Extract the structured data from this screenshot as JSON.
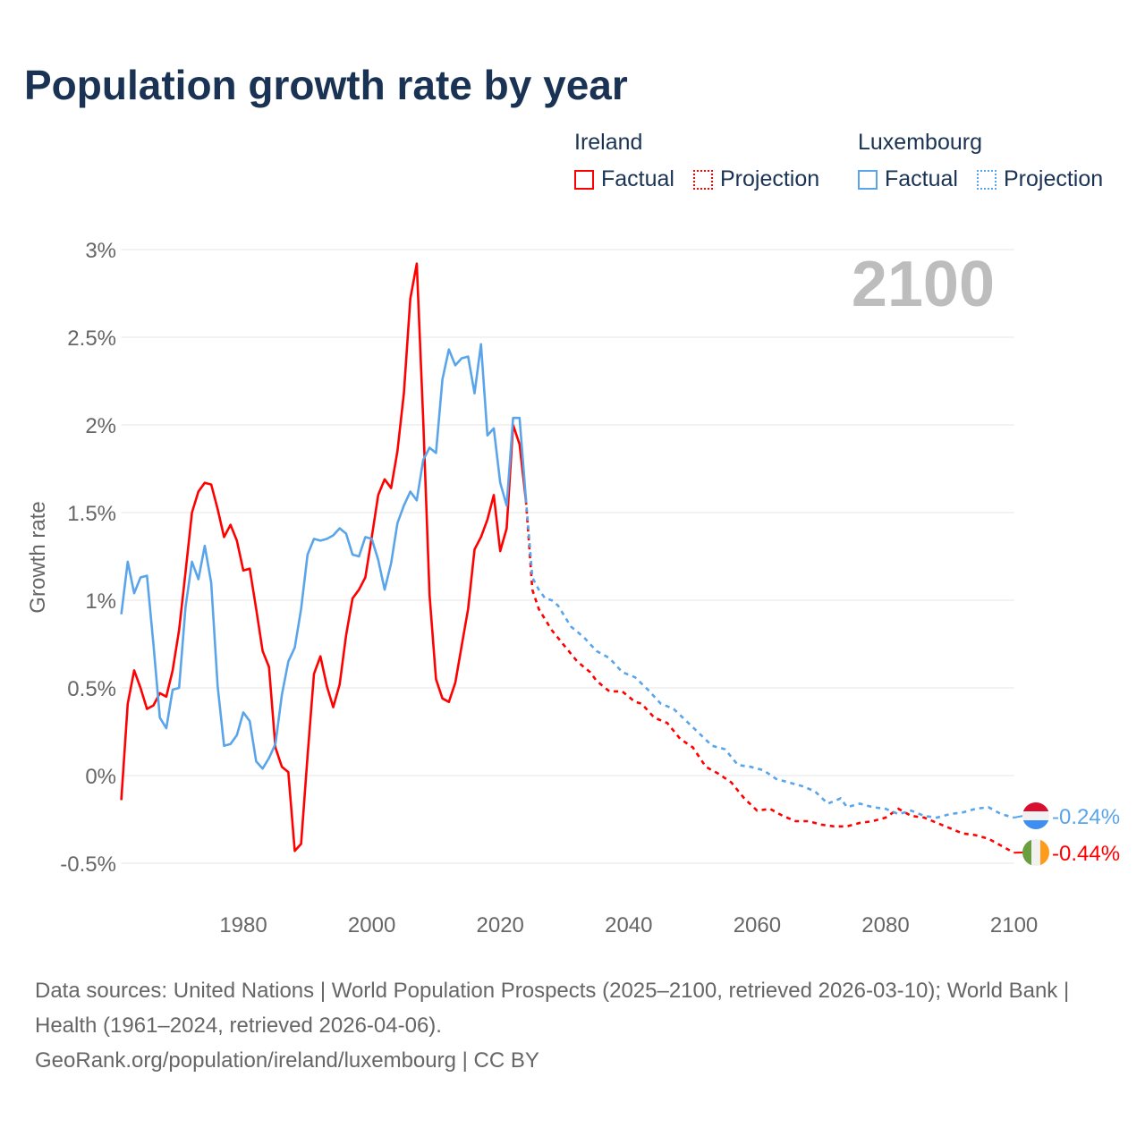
{
  "title": "Population growth rate by year",
  "legend": {
    "groups": [
      {
        "name": "Ireland",
        "factual": "Factual",
        "projection": "Projection",
        "color": "#ff0000"
      },
      {
        "name": "Luxembourg",
        "factual": "Factual",
        "projection": "Projection",
        "color": "#5aa5ea"
      }
    ]
  },
  "footer": {
    "sources": "Data sources: United Nations | World Population Prospects (2025–2100, retrieved 2026-03-10); World Bank | Health (1961–2024, retrieved 2026-04-06).",
    "credit": "GeoRank.org/population/ireland/luxembourg | CC BY"
  },
  "chart_data": {
    "type": "line",
    "title": "Population growth rate by year",
    "ylabel": "Growth rate",
    "xlabel": "",
    "year_label": "2100",
    "xlim": [
      1961,
      2100
    ],
    "ylim": [
      -0.5,
      3
    ],
    "x_ticks": [
      1980,
      2000,
      2020,
      2040,
      2060,
      2080,
      2100
    ],
    "y_ticks": [
      {
        "v": -0.5,
        "label": "-0.5%"
      },
      {
        "v": 0,
        "label": "0%"
      },
      {
        "v": 0.5,
        "label": "0.5%"
      },
      {
        "v": 1,
        "label": "1%"
      },
      {
        "v": 1.5,
        "label": "1.5%"
      },
      {
        "v": 2,
        "label": "2%"
      },
      {
        "v": 2.5,
        "label": "2.5%"
      },
      {
        "v": 3,
        "label": "3%"
      }
    ],
    "grid": true,
    "legend_position": "top-right",
    "series": [
      {
        "name": "Ireland",
        "color": "#ff0000",
        "end_label": "-0.44%",
        "factual": {
          "start_year": 1961,
          "values": [
            -0.14,
            0.41,
            0.6,
            0.5,
            0.38,
            0.4,
            0.47,
            0.45,
            0.6,
            0.83,
            1.16,
            1.5,
            1.62,
            1.67,
            1.66,
            1.52,
            1.36,
            1.43,
            1.34,
            1.17,
            1.18,
            0.95,
            0.71,
            0.62,
            0.16,
            0.05,
            0.02,
            -0.43,
            -0.39,
            0.11,
            0.58,
            0.68,
            0.51,
            0.39,
            0.52,
            0.8,
            1.01,
            1.06,
            1.13,
            1.36,
            1.6,
            1.69,
            1.64,
            1.85,
            2.18,
            2.72,
            2.92,
            2.03,
            1.03,
            0.55,
            0.44,
            0.42,
            0.53,
            0.74,
            0.95,
            1.29,
            1.36,
            1.46,
            1.6,
            1.28,
            1.41,
            2.0,
            1.89,
            1.57
          ]
        },
        "projection": {
          "years": [
            2024,
            2025,
            2026,
            2027,
            2028,
            2030,
            2032,
            2034,
            2035,
            2037,
            2039,
            2041,
            2042,
            2044,
            2046,
            2048,
            2050,
            2052,
            2054,
            2056,
            2058,
            2060,
            2062,
            2064,
            2066,
            2068,
            2070,
            2072,
            2074,
            2076,
            2078,
            2080,
            2082,
            2084,
            2086,
            2088,
            2090,
            2092,
            2094,
            2096,
            2098,
            2100
          ],
          "values": [
            1.57,
            1.06,
            0.95,
            0.89,
            0.83,
            0.74,
            0.65,
            0.59,
            0.54,
            0.48,
            0.48,
            0.42,
            0.41,
            0.33,
            0.3,
            0.21,
            0.16,
            0.05,
            0.01,
            -0.04,
            -0.13,
            -0.2,
            -0.19,
            -0.23,
            -0.26,
            -0.26,
            -0.28,
            -0.29,
            -0.29,
            -0.27,
            -0.26,
            -0.24,
            -0.19,
            -0.23,
            -0.24,
            -0.27,
            -0.3,
            -0.33,
            -0.34,
            -0.36,
            -0.4,
            -0.44
          ]
        }
      },
      {
        "name": "Luxembourg",
        "color": "#5aa5ea",
        "end_label": "-0.24%",
        "factual": {
          "start_year": 1961,
          "values": [
            0.92,
            1.22,
            1.04,
            1.13,
            1.14,
            0.75,
            0.33,
            0.27,
            0.49,
            0.5,
            0.96,
            1.22,
            1.12,
            1.31,
            1.1,
            0.51,
            0.17,
            0.18,
            0.23,
            0.36,
            0.31,
            0.08,
            0.04,
            0.1,
            0.18,
            0.46,
            0.65,
            0.73,
            0.95,
            1.26,
            1.35,
            1.34,
            1.35,
            1.37,
            1.41,
            1.38,
            1.26,
            1.25,
            1.36,
            1.35,
            1.23,
            1.06,
            1.21,
            1.44,
            1.54,
            1.62,
            1.57,
            1.8,
            1.87,
            1.84,
            2.26,
            2.43,
            2.34,
            2.38,
            2.39,
            2.18,
            2.46,
            1.94,
            1.98,
            1.67,
            1.54,
            2.04,
            2.04,
            1.58
          ]
        },
        "projection": {
          "years": [
            2024,
            2025,
            2026,
            2027,
            2028,
            2029,
            2031,
            2033,
            2035,
            2037,
            2039,
            2041,
            2043,
            2045,
            2047,
            2049,
            2051,
            2053,
            2055,
            2057,
            2059,
            2061,
            2063,
            2065,
            2067,
            2069,
            2071,
            2073,
            2074,
            2076,
            2078,
            2080,
            2082,
            2084,
            2086,
            2088,
            2090,
            2092,
            2094,
            2096,
            2098,
            2100
          ],
          "values": [
            1.58,
            1.13,
            1.06,
            1.01,
            1.0,
            0.97,
            0.85,
            0.79,
            0.71,
            0.67,
            0.59,
            0.56,
            0.49,
            0.41,
            0.38,
            0.31,
            0.24,
            0.17,
            0.15,
            0.06,
            0.05,
            0.03,
            -0.02,
            -0.04,
            -0.06,
            -0.09,
            -0.16,
            -0.13,
            -0.18,
            -0.16,
            -0.18,
            -0.19,
            -0.22,
            -0.2,
            -0.23,
            -0.24,
            -0.22,
            -0.21,
            -0.19,
            -0.18,
            -0.22,
            -0.24
          ]
        }
      }
    ]
  }
}
